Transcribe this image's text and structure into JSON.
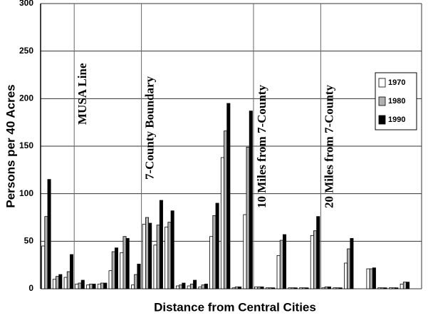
{
  "chart_data": {
    "type": "bar",
    "x_label": "Distance from Central Cities",
    "y_label": "Persons per 40 Acres",
    "categories": [
      null,
      null,
      null,
      null,
      null,
      null,
      null,
      null,
      null,
      null,
      null,
      null,
      null,
      null,
      null,
      null,
      null,
      null,
      null,
      null,
      null,
      null,
      null,
      null,
      null,
      null,
      null,
      null,
      null,
      null,
      null,
      null,
      null
    ],
    "series": [
      {
        "name": "1970",
        "color": "#ffffff",
        "values": [
          45,
          10,
          12,
          5,
          4,
          5,
          19,
          38,
          4,
          68,
          46,
          65,
          3,
          3,
          2,
          55,
          138,
          1,
          78,
          2,
          1,
          35,
          1,
          1,
          56,
          1,
          1,
          27,
          0,
          21,
          1,
          1,
          5
        ]
      },
      {
        "name": "1980",
        "color": "#b0b0b0",
        "values": [
          76,
          13,
          18,
          6,
          5,
          6,
          39,
          55,
          15,
          75,
          67,
          70,
          4,
          5,
          4,
          77,
          166,
          2,
          149,
          2,
          1,
          51,
          1,
          1,
          61,
          2,
          1,
          42,
          0,
          21,
          1,
          1,
          7
        ]
      },
      {
        "name": "1990",
        "color": "#000000",
        "values": [
          115,
          15,
          36,
          9,
          5,
          6,
          43,
          53,
          26,
          69,
          93,
          82,
          6,
          9,
          5,
          90,
          195,
          2,
          187,
          2,
          1,
          57,
          1,
          1,
          76,
          2,
          1,
          53,
          0,
          22,
          1,
          1,
          7
        ]
      }
    ],
    "annotations": [
      "MUSA Line",
      "7-County Boundary",
      "10 Miles from 7-County",
      "20 Miles from 7-County"
    ],
    "ylim": [
      0,
      300
    ],
    "yticks": [
      0,
      50,
      100,
      150,
      200,
      250,
      300
    ],
    "grid": true,
    "legend": "right"
  }
}
